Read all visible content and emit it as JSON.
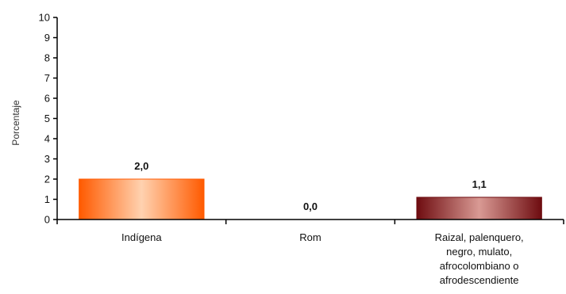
{
  "chart_data": {
    "type": "bar",
    "ylabel": "Porcentaje",
    "ylim": [
      0,
      10
    ],
    "yticks": [
      0,
      1,
      2,
      3,
      4,
      5,
      6,
      7,
      8,
      9,
      10
    ],
    "grid": false,
    "categories": [
      [
        "Indígena"
      ],
      [
        "Rom"
      ],
      [
        "Raizal, palenquero,",
        "negro, mulato,",
        "afrocolombiano o",
        "afrodescendiente"
      ]
    ],
    "values": [
      2.0,
      0.0,
      1.1
    ],
    "data_labels": [
      "2,0",
      "0,0",
      "1,1"
    ],
    "bar_colors": [
      {
        "edge": "#ff5a00",
        "center": "#ffd2b0"
      },
      {
        "edge": "#ff5a00",
        "center": "#ffd2b0"
      },
      {
        "edge": "#6e0c10",
        "center": "#d99a94"
      }
    ],
    "axis_color": "#000000"
  }
}
